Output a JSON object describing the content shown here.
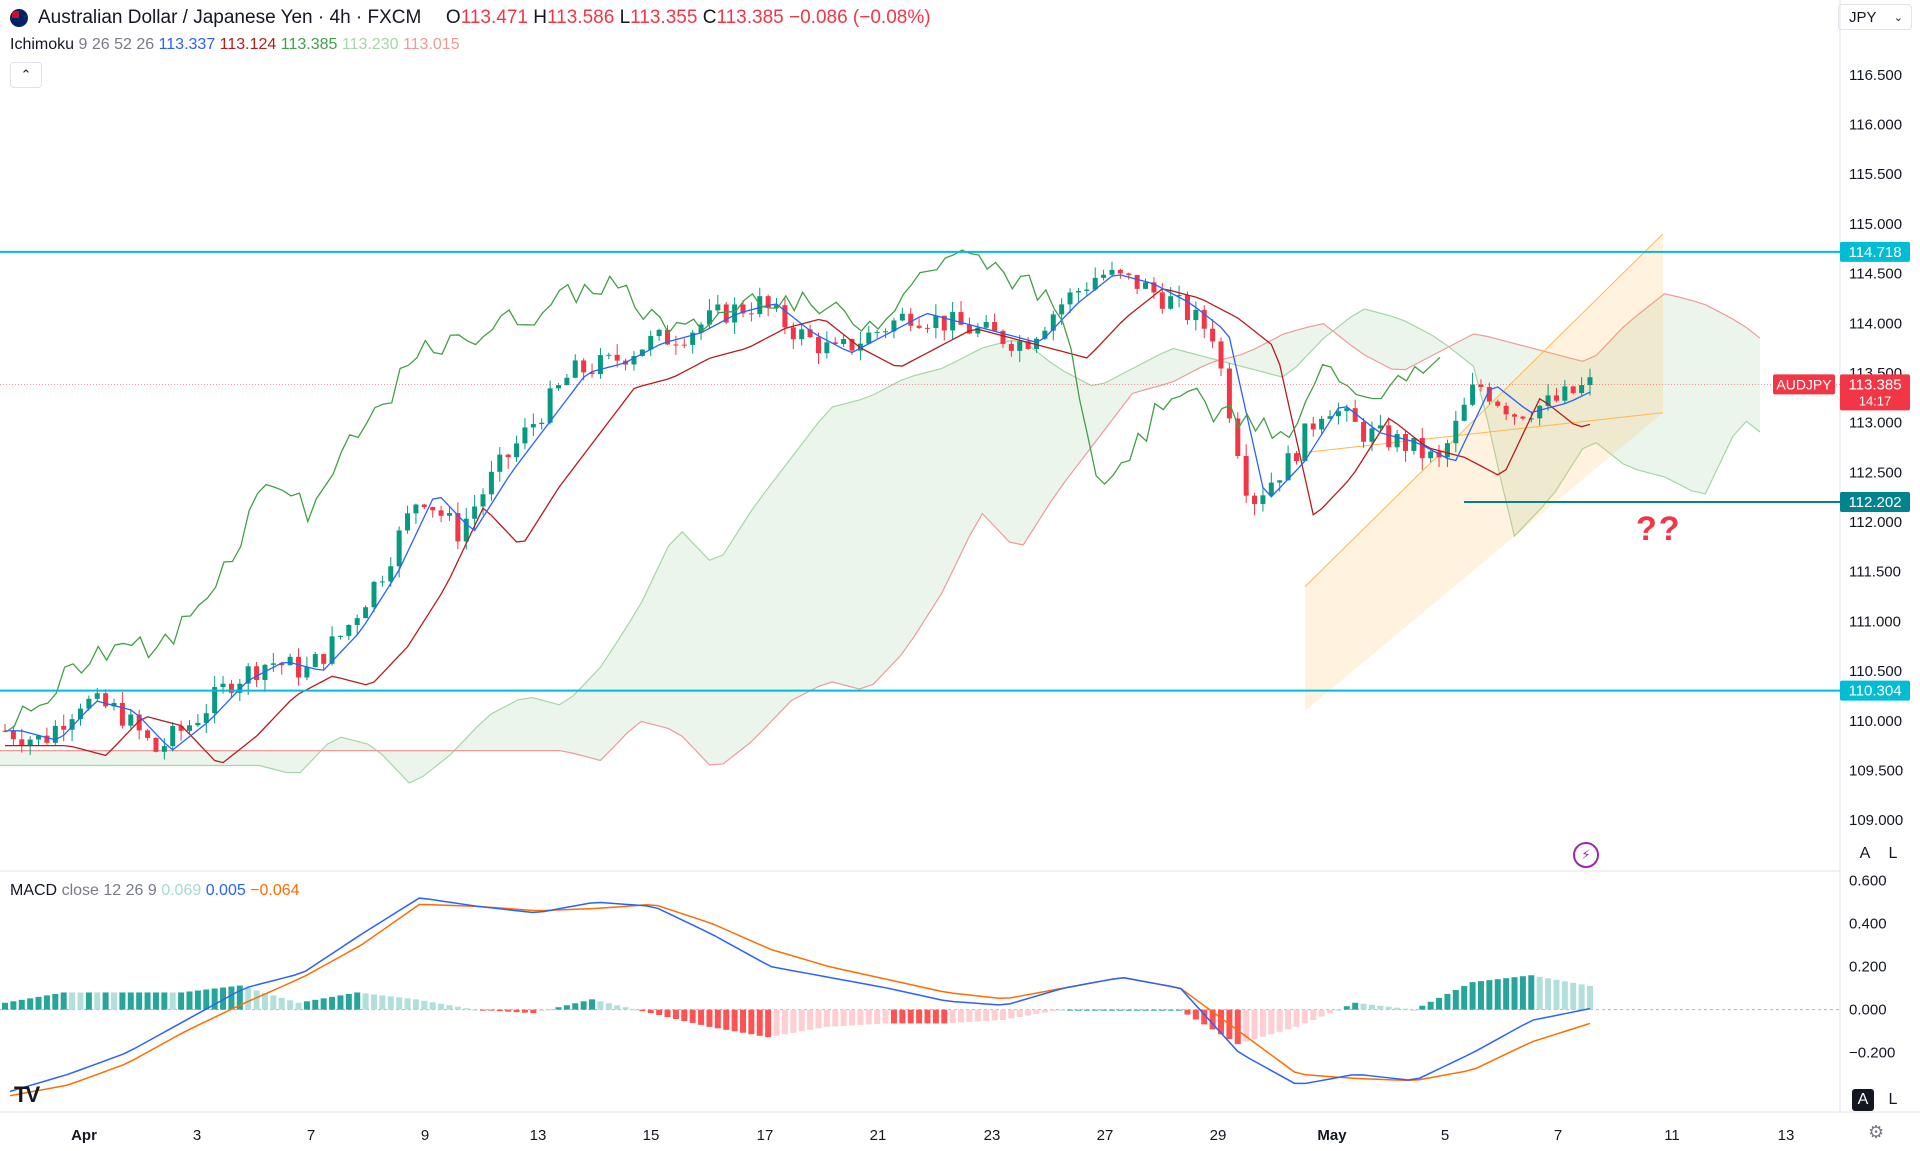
{
  "header": {
    "symbol_title": "Australian Dollar / Japanese Yen · 4h · FXCM",
    "ohlc": [
      {
        "label": "O",
        "value": "113.471"
      },
      {
        "label": "H",
        "value": "113.586"
      },
      {
        "label": "L",
        "value": "113.355"
      },
      {
        "label": "C",
        "value": "113.385"
      }
    ],
    "change": "−0.086 (−0.08%)",
    "currency": "JPY"
  },
  "ichimoku_legend": {
    "name": "Ichimoku",
    "params": "9 26 52 26",
    "values": [
      {
        "value": "113.337",
        "color": "#2962ff"
      },
      {
        "value": "113.124",
        "color": "#b71c1c"
      },
      {
        "value": "113.385",
        "color": "#43a047"
      },
      {
        "value": "113.230",
        "color": "#a5d6a7"
      },
      {
        "value": "113.015",
        "color": "#ef9a9a"
      }
    ]
  },
  "macd_legend": {
    "name": "MACD",
    "params": "close 12 26 9",
    "values": [
      {
        "value": "0.069",
        "color": "#a4dbd3"
      },
      {
        "value": "0.005",
        "color": "#2962ff"
      },
      {
        "value": "−0.064",
        "color": "#ff6d00"
      }
    ]
  },
  "price_badge": {
    "symbol": "AUDJPY",
    "price": "113.385",
    "countdown": "14:17"
  },
  "annotation_text": "??",
  "scale_buttons": {
    "auto": "A",
    "log": "L"
  },
  "logo_text": "TV",
  "chart_data": [
    {
      "type": "candlestick",
      "title": "Australian Dollar / Japanese Yen · 4h · FXCM",
      "y_ticks": [
        109.0,
        109.5,
        110.0,
        110.5,
        111.0,
        111.5,
        112.0,
        112.5,
        113.0,
        113.5,
        114.0,
        114.5,
        115.0,
        115.5,
        116.0,
        116.5
      ],
      "ylim": [
        108.75,
        116.8
      ],
      "x_ticks": [
        "Apr",
        "3",
        "7",
        "9",
        "13",
        "15",
        "17",
        "21",
        "23",
        "27",
        "29",
        "May",
        "5",
        "7",
        "11",
        "13"
      ],
      "horizontal_levels": [
        {
          "value": 114.718,
          "label": "114.718",
          "color": "#00bcd4"
        },
        {
          "value": 110.304,
          "label": "110.304",
          "color": "#00bcd4"
        },
        {
          "value": 112.202,
          "label": "112.202",
          "color": "#00838f"
        }
      ],
      "last_price": 113.385,
      "close_path": [
        109.9,
        109.8,
        110.2,
        110.1,
        109.7,
        110.0,
        110.4,
        110.6,
        110.5,
        110.9,
        111.5,
        112.3,
        111.9,
        112.5,
        113.0,
        113.5,
        113.6,
        113.8,
        113.9,
        114.1,
        114.2,
        113.9,
        113.7,
        113.9,
        114.1,
        114.0,
        113.9,
        113.8,
        114.2,
        114.5,
        114.4,
        114.2,
        113.9,
        112.2,
        112.6,
        113.2,
        112.9,
        112.8,
        112.6,
        113.4,
        113.1,
        113.2,
        113.385
      ]
    },
    {
      "type": "macd",
      "series": [
        {
          "name": "MACD",
          "color": "#2962ff"
        },
        {
          "name": "Signal",
          "color": "#ff6d00"
        },
        {
          "name": "Histogram",
          "color": "#26a69a"
        }
      ],
      "y_ticks": [
        -0.2,
        0.0,
        0.2,
        0.4,
        0.6
      ],
      "ylim": [
        -0.42,
        0.64
      ],
      "macd_path": [
        -0.38,
        -0.3,
        -0.2,
        -0.05,
        0.1,
        0.17,
        0.35,
        0.52,
        0.48,
        0.45,
        0.5,
        0.48,
        0.35,
        0.2,
        0.15,
        0.1,
        0.04,
        0.02,
        0.1,
        0.15,
        0.1,
        -0.2,
        -0.35,
        -0.3,
        -0.33,
        -0.2,
        -0.05,
        0.005
      ],
      "signal_path": [
        -0.4,
        -0.35,
        -0.25,
        -0.1,
        0.03,
        0.15,
        0.3,
        0.49,
        0.48,
        0.46,
        0.47,
        0.49,
        0.4,
        0.28,
        0.2,
        0.14,
        0.08,
        0.05,
        0.1,
        0.15,
        0.1,
        -0.1,
        -0.3,
        -0.32,
        -0.33,
        -0.28,
        -0.15,
        -0.064
      ]
    }
  ]
}
